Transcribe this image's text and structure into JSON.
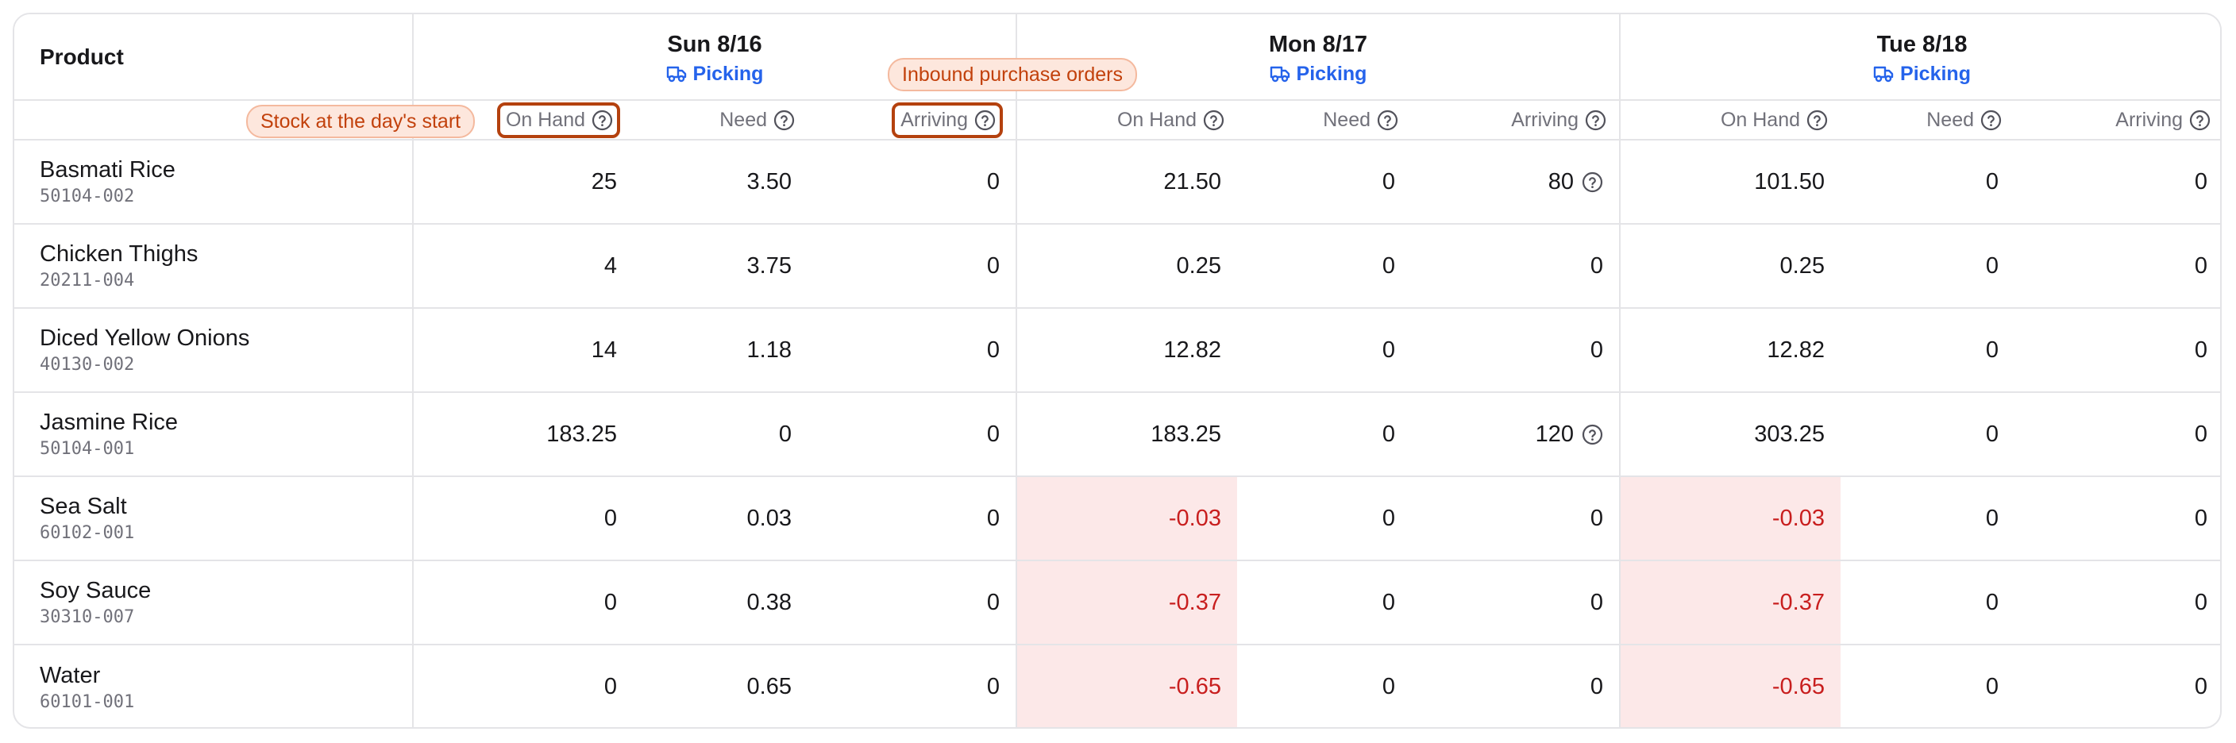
{
  "header": {
    "product_label": "Product",
    "days": [
      {
        "name": "Sun 8/16",
        "mode": "Picking"
      },
      {
        "name": "Mon 8/17",
        "mode": "Picking"
      },
      {
        "name": "Tue 8/18",
        "mode": "Picking"
      }
    ],
    "sub_columns": {
      "on_hand": "On Hand",
      "need": "Need",
      "arriving": "Arriving"
    }
  },
  "callouts": {
    "stock_start": "Stock at the day's start",
    "inbound": "Inbound purchase orders"
  },
  "icons": {
    "truck": "truck-icon",
    "help": "help-circle-icon"
  },
  "colors": {
    "accent": "#2563eb",
    "negative_text": "#c81e1e",
    "negative_bg": "#fce8e8",
    "callout": "#c2410c"
  },
  "rows": [
    {
      "name": "Basmati Rice",
      "sku": "50104-002",
      "values": [
        "25",
        "3.50",
        "0",
        "21.50",
        "0",
        "80",
        "101.50",
        "0",
        "0"
      ]
    },
    {
      "name": "Chicken Thighs",
      "sku": "20211-004",
      "values": [
        "4",
        "3.75",
        "0",
        "0.25",
        "0",
        "0",
        "0.25",
        "0",
        "0"
      ]
    },
    {
      "name": "Diced Yellow Onions",
      "sku": "40130-002",
      "values": [
        "14",
        "1.18",
        "0",
        "12.82",
        "0",
        "0",
        "12.82",
        "0",
        "0"
      ]
    },
    {
      "name": "Jasmine Rice",
      "sku": "50104-001",
      "values": [
        "183.25",
        "0",
        "0",
        "183.25",
        "0",
        "120",
        "303.25",
        "0",
        "0"
      ]
    },
    {
      "name": "Sea Salt",
      "sku": "60102-001",
      "values": [
        "0",
        "0.03",
        "0",
        "-0.03",
        "0",
        "0",
        "-0.03",
        "0",
        "0"
      ]
    },
    {
      "name": "Soy Sauce",
      "sku": "30310-007",
      "values": [
        "0",
        "0.38",
        "0",
        "-0.37",
        "0",
        "0",
        "-0.37",
        "0",
        "0"
      ]
    },
    {
      "name": "Water",
      "sku": "60101-001",
      "values": [
        "0",
        "0.65",
        "0",
        "-0.65",
        "0",
        "0",
        "-0.65",
        "0",
        "0"
      ]
    }
  ]
}
